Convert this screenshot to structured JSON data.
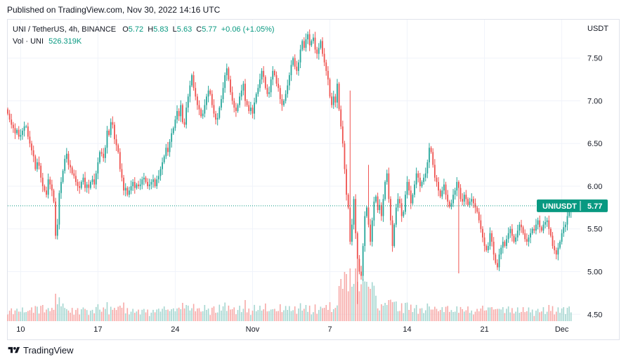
{
  "published": "Published on TradingView.com, Nov 30, 2022 14:16 UTC",
  "legend": {
    "symbol": "UNI / TetherUS, 4h, BINANCE",
    "o_label": "O",
    "o_value": "5.72",
    "h_label": "H",
    "h_value": "5.83",
    "l_label": "L",
    "l_value": "5.63",
    "c_label": "C",
    "c_value": "5.77",
    "change": "+0.06 (+1.05%)",
    "vol_label": "Vol · UNI",
    "vol_value": "526.319K"
  },
  "currency": "USDT",
  "price_tag": {
    "symbol": "UNIUSDT",
    "value": "5.77"
  },
  "footer": {
    "brand": "TradingView",
    "logo_icon": "tradingview-logo-icon"
  },
  "colors": {
    "up": "#26a69a",
    "down": "#ef5350",
    "up_vol": "#a5d6d0",
    "down_vol": "#f7a9a7",
    "tag": "#089981"
  },
  "chart_data": {
    "type": "candlestick",
    "symbol": "UNI / TetherUS",
    "interval": "4h",
    "exchange": "BINANCE",
    "ylim": [
      4.42,
      7.95
    ],
    "yticks": [
      4.5,
      5.0,
      5.5,
      6.0,
      6.5,
      7.0,
      7.5
    ],
    "y_tick_labels": [
      "4.50",
      "5.00",
      "5.50",
      "6.00",
      "6.50",
      "7.00",
      "7.50"
    ],
    "x_tick_labels": [
      "10",
      "17",
      "24",
      "Nov",
      "7",
      "14",
      "21",
      "Dec"
    ],
    "x_tick_bar_index": [
      7,
      49,
      91,
      133,
      175,
      217,
      259,
      301
    ],
    "last_price": 5.77,
    "last_candle": {
      "open": 5.72,
      "high": 5.83,
      "low": 5.63,
      "close": 5.77
    },
    "last_volume": "526.319K",
    "closes": [
      6.85,
      6.78,
      6.72,
      6.68,
      6.62,
      6.66,
      6.58,
      6.6,
      6.65,
      6.7,
      6.7,
      6.58,
      6.5,
      6.42,
      6.35,
      6.2,
      6.28,
      6.24,
      6.1,
      6.0,
      5.95,
      5.9,
      6.08,
      6.02,
      5.95,
      5.82,
      5.42,
      5.55,
      5.92,
      6.05,
      6.18,
      6.32,
      6.38,
      6.25,
      6.22,
      6.15,
      6.12,
      6.05,
      6.0,
      5.98,
      6.05,
      6.1,
      5.98,
      6.02,
      5.98,
      6.05,
      6.08,
      6.02,
      6.15,
      6.28,
      6.4,
      6.38,
      6.33,
      6.45,
      6.65,
      6.6,
      6.75,
      6.72,
      6.55,
      6.48,
      6.4,
      6.2,
      6.1,
      5.95,
      5.98,
      5.9,
      5.95,
      6.0,
      6.05,
      5.98,
      6.02,
      6.0,
      6.02,
      6.08,
      6.1,
      6.05,
      6.0,
      6.02,
      6.05,
      6.08,
      6.0,
      6.08,
      6.12,
      6.2,
      6.28,
      6.35,
      6.45,
      6.4,
      6.52,
      6.62,
      6.68,
      6.78,
      6.88,
      6.82,
      6.95,
      6.75,
      6.72,
      6.92,
      7.05,
      7.18,
      7.3,
      7.15,
      7.05,
      6.95,
      6.9,
      6.82,
      6.85,
      6.95,
      7.05,
      7.12,
      7.08,
      6.95,
      6.85,
      6.78,
      6.8,
      6.92,
      7.02,
      7.15,
      7.3,
      7.38,
      7.25,
      7.1,
      7.0,
      6.92,
      6.88,
      6.95,
      7.05,
      7.12,
      7.2,
      7.0,
      6.95,
      6.88,
      6.92,
      6.85,
      6.98,
      7.08,
      7.15,
      7.25,
      7.35,
      7.28,
      7.15,
      7.08,
      7.1,
      7.25,
      7.35,
      7.3,
      7.2,
      7.15,
      7.02,
      6.95,
      7.0,
      7.08,
      7.18,
      7.3,
      7.42,
      7.5,
      7.4,
      7.35,
      7.45,
      7.6,
      7.7,
      7.62,
      7.72,
      7.78,
      7.65,
      7.7,
      7.74,
      7.6,
      7.55,
      7.62,
      7.7,
      7.55,
      7.45,
      7.35,
      7.25,
      7.05,
      6.95,
      7.05,
      6.98,
      7.2,
      6.9,
      6.7,
      6.5,
      6.2,
      5.9,
      5.75,
      5.35,
      5.55,
      5.85,
      5.45,
      5.15,
      5.0,
      4.95,
      5.3,
      5.65,
      5.75,
      5.55,
      5.35,
      5.6,
      5.82,
      5.88,
      5.72,
      5.78,
      5.65,
      5.85,
      6.05,
      6.15,
      5.85,
      5.6,
      5.3,
      5.55,
      5.75,
      5.85,
      5.8,
      5.65,
      5.7,
      5.9,
      6.05,
      5.95,
      5.8,
      5.9,
      6.02,
      6.15,
      6.1,
      6.0,
      6.05,
      6.1,
      6.15,
      6.28,
      6.45,
      6.4,
      6.25,
      6.1,
      6.05,
      5.95,
      5.88,
      5.95,
      6.02,
      5.9,
      5.82,
      5.76,
      5.8,
      5.9,
      5.95,
      6.05,
      5.98,
      5.85,
      5.82,
      5.9,
      5.85,
      5.78,
      5.82,
      5.85,
      5.8,
      5.75,
      5.7,
      5.6,
      5.5,
      5.4,
      5.3,
      5.25,
      5.3,
      5.45,
      5.35,
      5.2,
      5.1,
      5.05,
      5.2,
      5.28,
      5.35,
      5.3,
      5.38,
      5.45,
      5.5,
      5.42,
      5.35,
      5.4,
      5.48,
      5.55,
      5.52,
      5.45,
      5.38,
      5.35,
      5.4,
      5.45,
      5.5,
      5.48,
      5.55,
      5.6,
      5.52,
      5.48,
      5.55,
      5.58,
      5.6,
      5.5,
      5.42,
      5.3,
      5.25,
      5.2,
      5.28,
      5.35,
      5.45,
      5.52,
      5.55,
      5.65,
      5.72,
      5.77
    ]
  }
}
